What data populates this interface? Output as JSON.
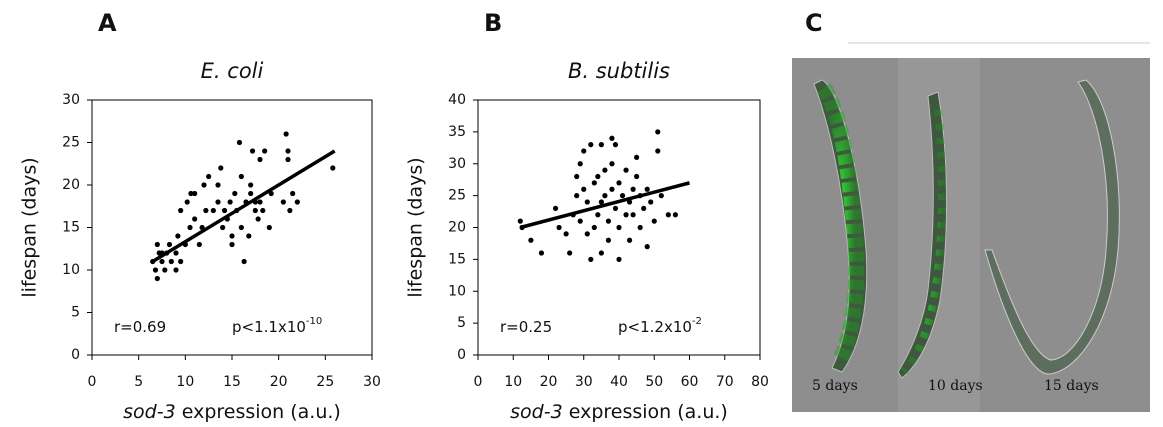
{
  "chart_data": [
    {
      "type": "scatter",
      "panel": "A",
      "title": "E. coli",
      "xlabel": [
        "sod-3",
        " expression (a.u.)"
      ],
      "ylabel": "lifespan (days)",
      "xlim": [
        0,
        30
      ],
      "xticks": [
        0,
        5,
        10,
        15,
        20,
        25,
        30
      ],
      "ylim": [
        0,
        30
      ],
      "yticks": [
        0,
        5,
        10,
        15,
        20,
        25,
        30
      ],
      "color": "#000000",
      "x": [
        6.5,
        6.8,
        7,
        7.2,
        7,
        7.5,
        7.8,
        7.5,
        8,
        8.3,
        8.5,
        9,
        9,
        9.5,
        9.2,
        9.5,
        10,
        10.5,
        10.2,
        10.6,
        11,
        11,
        11.5,
        11.8,
        12,
        12.5,
        12.2,
        13,
        13.5,
        13.5,
        13.8,
        14,
        14.2,
        14.5,
        14.8,
        15,
        15,
        15.3,
        15.5,
        15.8,
        16,
        16,
        16.3,
        16.5,
        16.8,
        17,
        17,
        17.2,
        17.5,
        17.5,
        17.8,
        18,
        18,
        18.3,
        18.5,
        19,
        19.2,
        20.5,
        20.8,
        21,
        21,
        21.2,
        21.5,
        22,
        25.8
      ],
      "values": [
        11,
        10,
        9,
        12,
        13,
        11,
        10,
        12,
        12,
        13,
        11,
        10,
        12,
        11,
        14,
        17,
        13,
        15,
        18,
        19,
        19,
        16,
        13,
        15,
        20,
        21,
        17,
        17,
        18,
        20,
        22,
        15,
        17,
        16,
        18,
        14,
        13,
        19,
        17,
        25,
        21,
        15,
        11,
        18,
        14,
        19,
        20,
        24,
        17,
        18,
        16,
        23,
        18,
        17,
        24,
        15,
        19,
        18,
        26,
        23,
        24,
        17,
        19,
        18,
        22
      ],
      "fit": {
        "x": [
          6.5,
          26
        ],
        "values": [
          11,
          24
        ]
      },
      "annotations": [
        {
          "text": "r=0.69"
        },
        {
          "text": "p<1.1x10",
          "sup": "-10"
        }
      ]
    },
    {
      "type": "scatter",
      "panel": "B",
      "title": "B. subtilis",
      "xlabel": [
        "sod-3",
        " expression (a.u.)"
      ],
      "ylabel": "lifespan (days)",
      "xlim": [
        0,
        80
      ],
      "xticks": [
        0,
        10,
        20,
        30,
        40,
        50,
        60,
        70,
        80
      ],
      "ylim": [
        0,
        40
      ],
      "yticks": [
        0,
        5,
        10,
        15,
        20,
        25,
        30,
        35,
        40
      ],
      "color": "#000000",
      "x": [
        12,
        12.5,
        15,
        18,
        22,
        23,
        25,
        26,
        27,
        28,
        28,
        29,
        29,
        30,
        30,
        31,
        31,
        32,
        32,
        33,
        33,
        34,
        34,
        35,
        35,
        35,
        36,
        36,
        37,
        37,
        38,
        38,
        38,
        39,
        39,
        40,
        40,
        40,
        41,
        42,
        42,
        43,
        43,
        44,
        44,
        45,
        45,
        46,
        46,
        47,
        48,
        48,
        49,
        50,
        51,
        51,
        52,
        54,
        56
      ],
      "values": [
        21,
        20,
        18,
        16,
        23,
        20,
        19,
        16,
        22,
        25,
        28,
        21,
        30,
        32,
        26,
        19,
        24,
        15,
        33,
        27,
        20,
        22,
        28,
        33,
        24,
        16,
        25,
        29,
        21,
        18,
        30,
        26,
        34,
        33,
        23,
        15,
        27,
        20,
        25,
        29,
        22,
        24,
        18,
        26,
        22,
        28,
        31,
        25,
        20,
        23,
        26,
        17,
        24,
        21,
        35,
        32,
        25,
        22,
        22
      ],
      "fit": {
        "x": [
          12,
          60
        ],
        "values": [
          20,
          27
        ]
      },
      "annotations": [
        {
          "text": "r=0.25"
        },
        {
          "text": "p<1.2x10",
          "sup": "-2"
        }
      ]
    }
  ],
  "panel_c": {
    "panel": "C",
    "labels": [
      "5 days",
      "10 days",
      "15 days"
    ]
  }
}
